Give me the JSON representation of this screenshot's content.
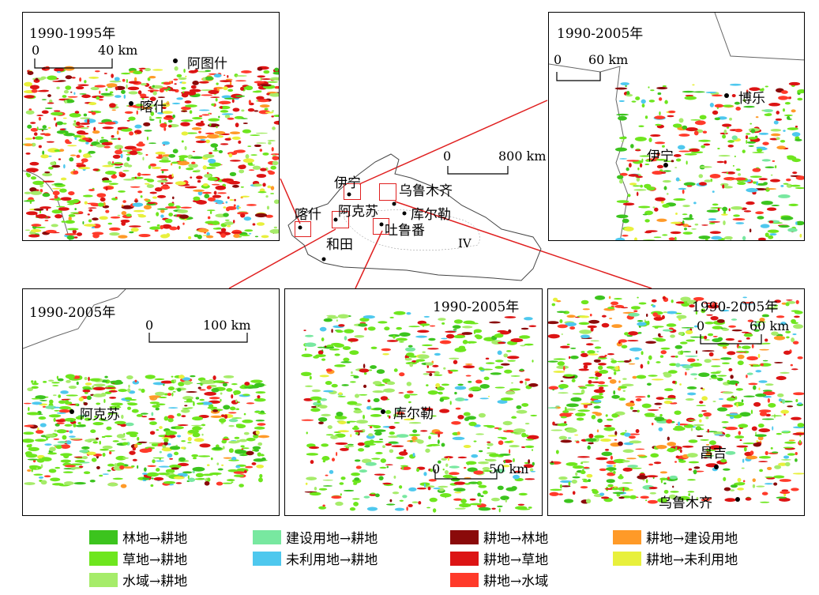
{
  "panels": {
    "kashgar": {
      "title": "1990-1995年",
      "scale": {
        "zero": "0",
        "end": "40 km"
      },
      "cities": [
        "阿图什",
        "喀什"
      ]
    },
    "bole": {
      "title": "1990-2005年",
      "scale": {
        "zero": "0",
        "end": "60 km"
      },
      "cities": [
        "博乐",
        "伊宁"
      ]
    },
    "aksu": {
      "title": "1990-2005年",
      "scale": {
        "zero": "0",
        "end": "100 km"
      },
      "cities": [
        "阿克苏"
      ]
    },
    "korla": {
      "title": "1990-2005年",
      "scale": {
        "zero": "0",
        "end": "50 km"
      },
      "cities": [
        "库尔勒"
      ]
    },
    "urumqi": {
      "title": "1990-2005年",
      "scale": {
        "zero": "0",
        "end": "60 km"
      },
      "cities": [
        "昌吉",
        "乌鲁木齐"
      ]
    }
  },
  "overview": {
    "scale": {
      "zero": "0",
      "end": "800 km"
    },
    "cities": [
      "伊宁",
      "乌鲁木齐",
      "喀什",
      "阿克苏",
      "库尔勒",
      "吐鲁番",
      "和田"
    ],
    "region_label": "IV"
  },
  "legend": [
    {
      "label": "林地→耕地",
      "color": "#3cc41e"
    },
    {
      "label": "草地→耕地",
      "color": "#6ee61e"
    },
    {
      "label": "水域→耕地",
      "color": "#a6ec6a"
    },
    {
      "label": "建设用地→耕地",
      "color": "#78e8a0"
    },
    {
      "label": "未利用地→耕地",
      "color": "#4ec8ee"
    },
    {
      "label": "耕地→林地",
      "color": "#8a0a0a"
    },
    {
      "label": "耕地→草地",
      "color": "#dc1414"
    },
    {
      "label": "耕地→水域",
      "color": "#ff3a2a"
    },
    {
      "label": "耕地→建设用地",
      "color": "#ff9a28"
    },
    {
      "label": "耕地→未利用地",
      "color": "#e8f03c"
    }
  ]
}
